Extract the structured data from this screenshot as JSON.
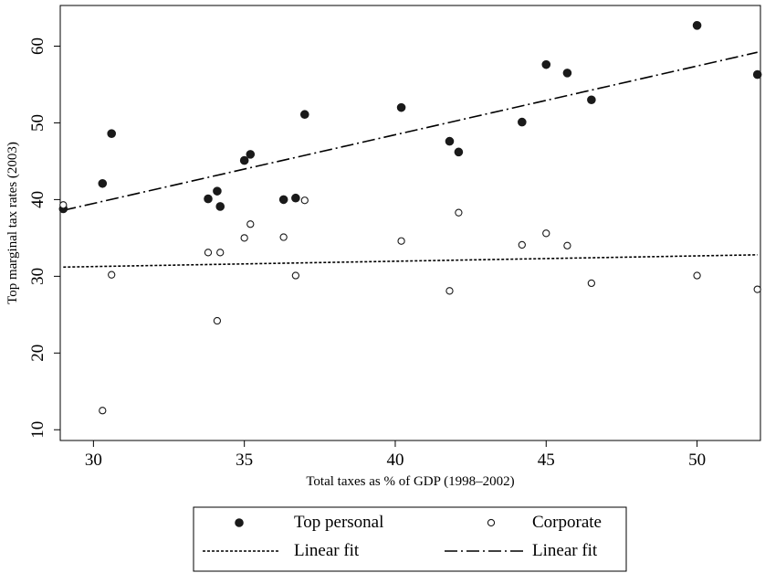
{
  "chart_data": {
    "type": "scatter",
    "xlabel": "Total taxes as % of GDP (1998–2002)",
    "ylabel": "Top marginal tax rates (2003)",
    "xlim": [
      28.9,
      52.1
    ],
    "ylim": [
      8.6,
      65.3
    ],
    "xticks": [
      30,
      35,
      40,
      45,
      50
    ],
    "yticks": [
      10,
      20,
      30,
      40,
      50,
      60
    ],
    "grid": false,
    "legend_position": "bottom",
    "series": [
      {
        "name": "Top personal",
        "marker": "filled-circle",
        "color": "#1a1a1a",
        "points": [
          [
            29.0,
            38.8
          ],
          [
            30.3,
            42.1
          ],
          [
            30.6,
            48.6
          ],
          [
            33.8,
            40.1
          ],
          [
            34.1,
            41.1
          ],
          [
            34.2,
            39.1
          ],
          [
            35.0,
            45.1
          ],
          [
            35.2,
            45.9
          ],
          [
            36.3,
            40.0
          ],
          [
            36.7,
            40.2
          ],
          [
            37.0,
            51.1
          ],
          [
            40.2,
            52.0
          ],
          [
            41.8,
            47.6
          ],
          [
            42.1,
            46.2
          ],
          [
            44.2,
            50.1
          ],
          [
            45.0,
            57.6
          ],
          [
            45.7,
            56.5
          ],
          [
            46.5,
            53.0
          ],
          [
            50.0,
            62.7
          ],
          [
            52.0,
            56.3
          ]
        ]
      },
      {
        "name": "Corporate",
        "marker": "open-circle",
        "color": "#1a1a1a",
        "points": [
          [
            29.0,
            39.3
          ],
          [
            30.3,
            12.5
          ],
          [
            30.6,
            30.2
          ],
          [
            33.8,
            33.1
          ],
          [
            34.1,
            24.2
          ],
          [
            34.2,
            33.1
          ],
          [
            35.0,
            35.0
          ],
          [
            35.2,
            36.8
          ],
          [
            36.3,
            35.1
          ],
          [
            36.7,
            30.1
          ],
          [
            37.0,
            39.9
          ],
          [
            40.2,
            34.6
          ],
          [
            41.8,
            28.1
          ],
          [
            42.1,
            38.3
          ],
          [
            44.2,
            34.1
          ],
          [
            45.0,
            35.6
          ],
          [
            45.7,
            34.0
          ],
          [
            46.5,
            29.1
          ],
          [
            50.0,
            30.1
          ],
          [
            52.0,
            28.3
          ]
        ]
      }
    ],
    "fit_lines": [
      {
        "name": "Linear fit",
        "of": "Corporate",
        "style": "dotted",
        "x": [
          29.0,
          52.0
        ],
        "y": [
          31.2,
          32.8
        ]
      },
      {
        "name": "Linear fit",
        "of": "Top personal",
        "style": "long-dash-dot",
        "x": [
          29.0,
          52.0
        ],
        "y": [
          38.6,
          59.2
        ]
      }
    ],
    "legend": [
      {
        "symbol": "filled-circle",
        "label": "Top personal"
      },
      {
        "symbol": "open-circle",
        "label": "Corporate"
      },
      {
        "symbol": "dotted-line",
        "label": "Linear fit"
      },
      {
        "symbol": "dashdot-line",
        "label": "Linear fit"
      }
    ]
  }
}
